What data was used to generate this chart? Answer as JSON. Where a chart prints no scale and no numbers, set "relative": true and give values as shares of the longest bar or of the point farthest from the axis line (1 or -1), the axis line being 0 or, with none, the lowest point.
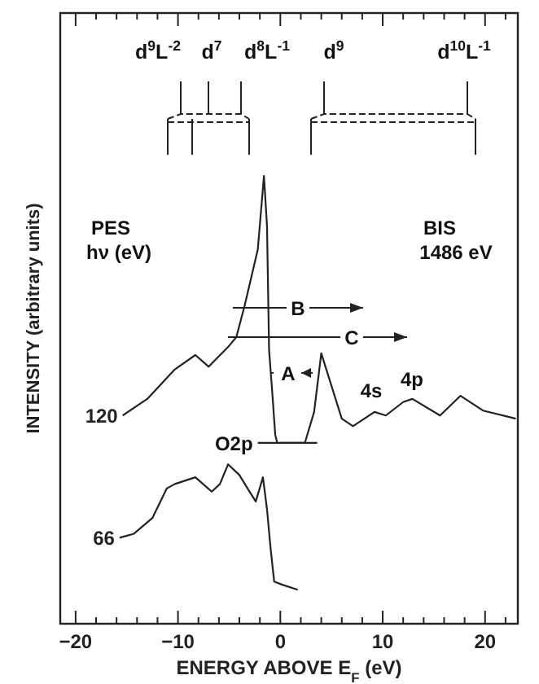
{
  "chart_data": {
    "type": "line",
    "xlabel": "ENERGY ABOVE E$_{F}$ (eV)",
    "ylabel": "INTENSITY (arbitrary units)",
    "relative": true,
    "xlim": [
      -21.5,
      23.2
    ],
    "xticks": [
      -20,
      {
        "value": -18,
        "label": null
      },
      {
        "value": -16,
        "label": null
      },
      {
        "value": -14,
        "label": null
      },
      {
        "value": -12,
        "label": null
      },
      {
        "value": -10,
        "label": "−10"
      },
      {
        "value": -8,
        "label": null
      },
      {
        "value": -6,
        "label": null
      },
      {
        "value": -4,
        "label": null
      },
      {
        "value": -2,
        "label": null
      },
      0,
      {
        "value": 2,
        "label": null
      },
      {
        "value": 4,
        "label": null
      },
      {
        "value": 6,
        "label": null
      },
      {
        "value": 8,
        "label": null
      },
      10,
      {
        "value": 12,
        "label": null
      },
      {
        "value": 14,
        "label": null
      },
      {
        "value": 16,
        "label": null
      },
      {
        "value": 18,
        "label": null
      },
      20,
      {
        "value": 22,
        "label": null
      }
    ],
    "series": [
      {
        "name": "120",
        "color": "#222222",
        "x": [
          -15.4,
          -13,
          -10.3,
          -8.3,
          -7,
          -5.1,
          -4.3,
          -3.5,
          -2.2,
          -1.6,
          -1.3,
          -1.1,
          -0.8,
          -0.5,
          -0.3
        ],
        "values": [
          0.465,
          0.502,
          0.568,
          0.6,
          0.574,
          0.618,
          0.64,
          0.709,
          0.836,
          1,
          0.887,
          0.611,
          0.52,
          0.422,
          0.404
        ]
      },
      {
        "color": "#222222",
        "x": [
          0,
          2.4,
          3.3,
          4,
          6,
          7.1,
          9.2,
          10.3,
          12,
          12.9,
          15.6,
          17.6,
          19.8,
          23
        ],
        "values": [
          0.404,
          0.404,
          0.473,
          0.604,
          0.458,
          0.441,
          0.473,
          0.465,
          0.495,
          0.502,
          0.465,
          0.509,
          0.476,
          0.458
        ]
      },
      {
        "name": "66",
        "color": "#222222",
        "x": [
          -15.7,
          -14.3,
          -12.5,
          -11.1,
          -10.3,
          -8.3,
          -6.7,
          -5.9,
          -5.1,
          -4,
          -3.2,
          -2.4,
          -1.7,
          -1.3,
          -0.95,
          -0.6,
          0.2,
          1.7
        ],
        "values": [
          0.192,
          0.201,
          0.236,
          0.302,
          0.312,
          0.327,
          0.295,
          0.312,
          0.356,
          0.332,
          0.302,
          0.273,
          0.327,
          0.255,
          0.168,
          0.094,
          0.087,
          0.076
        ]
      },
      {
        "color": "#222222",
        "x": [
          -2.2,
          3.6
        ],
        "values": [
          0.404,
          0.404
        ]
      }
    ],
    "annotations": [
      {
        "text": "O2p",
        "x": -2.2,
        "y": 0.404
      },
      "d$^{9}$L$^{-2}$",
      "d$^{7}$",
      "d$^{8}$L$^{-1}$",
      "d$^{9}$",
      "d$^{10}$L$^{-1}$",
      "4s",
      "4p",
      "PES",
      "hν (eV)",
      "BIS",
      "1486 eV",
      "B",
      "C",
      "A"
    ]
  }
}
